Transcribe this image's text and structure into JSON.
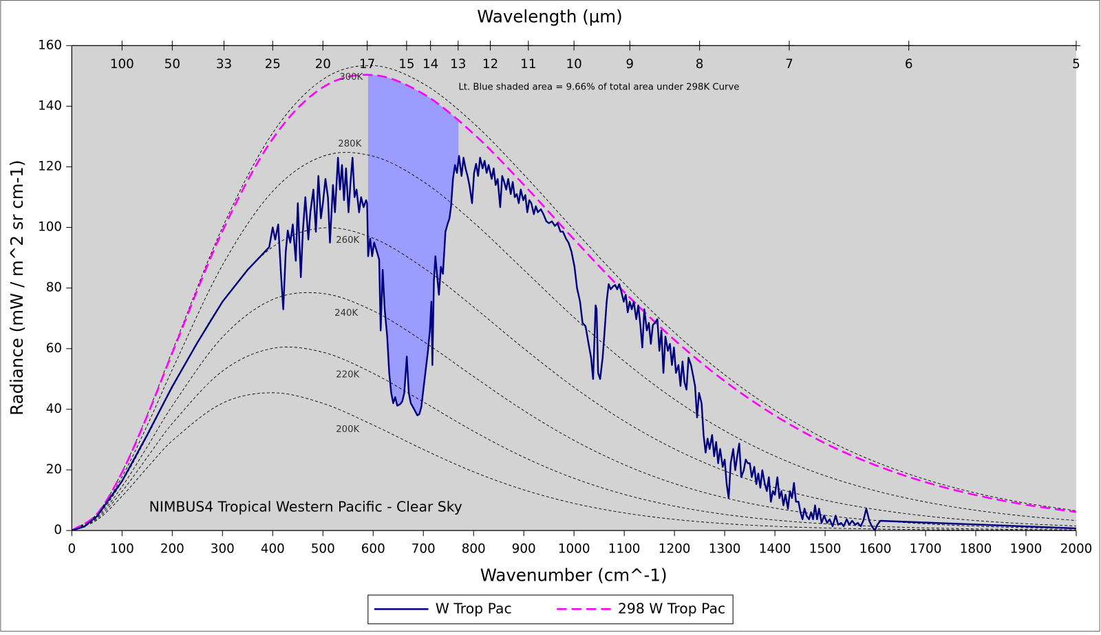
{
  "chart_data": {
    "type": "line",
    "x_label": "Wavenumber (cm^-1)",
    "y_label": "Radiance (mW / m^2 sr cm-1)",
    "top_axis_label": "Wavelength (µm)",
    "top_ticks": [
      100,
      50,
      33,
      25,
      20,
      17,
      15,
      14,
      13,
      12,
      11,
      10,
      9,
      8,
      7,
      6,
      5
    ],
    "xlim": [
      0,
      2000
    ],
    "xticks": [
      0,
      100,
      200,
      300,
      400,
      500,
      600,
      700,
      800,
      900,
      1000,
      1100,
      1200,
      1300,
      1400,
      1500,
      1600,
      1700,
      1800,
      1900,
      2000
    ],
    "ylim": [
      0,
      160
    ],
    "yticks": [
      0,
      20,
      40,
      60,
      80,
      100,
      120,
      140,
      160
    ],
    "background": "#d3d3d3",
    "legend": "bottom",
    "annotations": [
      "NIMBUS4 Tropical Western Pacific - Clear Sky",
      "Lt. Blue shaded area = 9.66% of total area under 298K Curve"
    ],
    "shaded_xlim": [
      590,
      770
    ],
    "shade_color": "#9c9cff",
    "series": [
      {
        "name": "W Trop Pac",
        "color": "#000080",
        "dashed": false,
        "x": [
          0,
          25,
          50,
          100,
          150,
          200,
          250,
          300,
          350,
          393,
          400,
          405,
          411,
          416,
          421,
          426,
          430,
          435,
          440,
          446,
          450,
          456,
          460,
          465,
          471,
          475,
          481,
          486,
          491,
          496,
          500,
          505,
          510,
          514,
          520,
          524,
          530,
          534,
          538,
          542,
          546,
          551,
          555,
          559,
          563,
          567,
          572,
          576,
          581,
          586,
          588,
          590,
          594,
          598,
          602,
          608,
          612,
          615,
          619,
          623,
          628,
          632,
          636,
          640,
          644,
          648,
          654,
          658,
          662,
          667,
          671,
          675,
          679,
          683,
          688,
          692,
          696,
          700,
          704,
          709,
          713,
          716,
          718,
          721,
          724,
          727,
          731,
          735,
          739,
          744,
          748,
          752,
          755,
          759,
          763,
          767,
          771,
          776,
          780,
          784,
          788,
          792,
          797,
          801,
          805,
          809,
          813,
          818,
          822,
          826,
          830,
          836,
          840,
          844,
          848,
          853,
          857,
          861,
          865,
          869,
          874,
          878,
          882,
          886,
          890,
          894,
          899,
          903,
          907,
          911,
          915,
          920,
          924,
          928,
          934,
          939,
          945,
          950,
          956,
          962,
          967,
          973,
          978,
          984,
          989,
          995,
          1001,
          1006,
          1012,
          1017,
          1023,
          1029,
          1034,
          1038,
          1043,
          1045,
          1048,
          1052,
          1057,
          1061,
          1065,
          1069,
          1073,
          1078,
          1082,
          1086,
          1090,
          1094,
          1099,
          1103,
          1107,
          1111,
          1115,
          1119,
          1124,
          1128,
          1132,
          1136,
          1140,
          1145,
          1149,
          1153,
          1157,
          1161,
          1166,
          1170,
          1174,
          1178,
          1182,
          1187,
          1191,
          1195,
          1199,
          1203,
          1208,
          1212,
          1216,
          1220,
          1224,
          1228,
          1233,
          1237,
          1241,
          1245,
          1249,
          1254,
          1258,
          1262,
          1266,
          1270,
          1275,
          1279,
          1283,
          1287,
          1291,
          1296,
          1300,
          1304,
          1308,
          1312,
          1317,
          1321,
          1325,
          1329,
          1333,
          1338,
          1342,
          1346,
          1350,
          1354,
          1359,
          1363,
          1367,
          1371,
          1375,
          1380,
          1384,
          1388,
          1392,
          1396,
          1400,
          1405,
          1409,
          1413,
          1417,
          1421,
          1426,
          1430,
          1434,
          1438,
          1442,
          1447,
          1451,
          1455,
          1459,
          1463,
          1468,
          1472,
          1476,
          1480,
          1484,
          1488,
          1493,
          1498,
          1504,
          1509,
          1515,
          1521,
          1526,
          1532,
          1537,
          1543,
          1548,
          1554,
          1560,
          1565,
          1571,
          1576,
          1582,
          1588,
          1593,
          1599,
          1604,
          1610,
          2000
        ],
        "values": [
          0,
          1.3,
          4.7,
          16.3,
          31.5,
          47.5,
          62,
          75.5,
          86,
          93.5,
          100,
          96,
          101,
          86,
          73,
          92,
          99,
          95,
          101,
          89,
          108,
          83.6,
          98.6,
          110,
          96,
          105,
          112.5,
          98.6,
          117,
          103,
          108,
          116,
          110,
          95,
          114,
          105,
          123,
          112.5,
          120.6,
          109,
          119.5,
          105,
          115,
          123,
          110,
          112.5,
          105,
          110,
          106.7,
          109,
          108,
          90.5,
          96.3,
          90.5,
          95,
          91.7,
          89.4,
          66,
          86,
          73,
          64,
          52,
          45.4,
          42,
          44,
          41.2,
          41.7,
          42.6,
          45.4,
          57.4,
          45.4,
          42,
          40.8,
          39.6,
          38,
          38.4,
          40.8,
          46.5,
          52,
          59,
          66,
          75.5,
          54.6,
          82.4,
          90.5,
          84.7,
          77.8,
          87,
          84.7,
          98.6,
          101,
          103,
          106.7,
          116,
          120.6,
          118,
          123.6,
          117,
          123,
          119.5,
          117,
          113.7,
          108,
          118,
          121,
          117,
          123,
          119.5,
          122,
          118,
          120.6,
          116,
          119.5,
          114,
          116,
          106.7,
          117,
          115,
          112.5,
          116,
          111,
          115,
          110,
          111,
          108,
          112.5,
          109,
          110.7,
          105,
          109,
          108,
          104.4,
          107,
          105,
          106,
          104.4,
          102,
          101.4,
          102,
          100.5,
          101.4,
          98.6,
          98.6,
          96.3,
          95,
          92,
          87,
          80,
          75.5,
          68.5,
          67.4,
          61.6,
          57,
          50,
          74.3,
          73,
          52,
          50,
          57,
          66,
          75.5,
          81.3,
          79.6,
          80.6,
          81,
          79.6,
          81.3,
          79,
          75.5,
          77.8,
          72,
          75.5,
          73,
          75.5,
          69.7,
          74.3,
          68,
          60.4,
          73,
          66,
          68.5,
          61.6,
          67.8,
          68.5,
          69.7,
          59.3,
          66,
          52,
          64,
          59.3,
          61.6,
          54.6,
          60.4,
          52,
          54.6,
          47.7,
          55.8,
          48.9,
          46.5,
          57,
          54.6,
          51.2,
          47.7,
          37.3,
          45.4,
          42,
          31.5,
          25.7,
          30.3,
          26.9,
          31.5,
          24.5,
          29.2,
          22.2,
          26.9,
          21,
          23.4,
          15.3,
          10.7,
          22.2,
          26.9,
          19.9,
          24.5,
          28.7,
          17.6,
          19.9,
          23.4,
          22.2,
          22.2,
          17.6,
          21,
          15.3,
          18.8,
          14.1,
          19.9,
          15.3,
          13,
          17.6,
          9.5,
          13,
          11.8,
          17.6,
          10.7,
          13,
          8.3,
          11.8,
          7.2,
          13,
          10.7,
          15.7,
          9.5,
          9.5,
          6,
          3.7,
          7.2,
          4.9,
          3.7,
          6,
          3.7,
          8.3,
          3.7,
          7.2,
          2.5,
          4.9,
          2.5,
          3.7,
          1.4,
          4.9,
          1.9,
          2.5,
          1.4,
          3.7,
          1.9,
          3.2,
          1.9,
          2.5,
          1.4,
          3.2,
          7.2,
          3.2,
          1.4,
          0,
          1.9,
          3.2,
          0.7
        ]
      },
      {
        "name": "298 W Trop Pac",
        "color": "#ff00ff",
        "dashed": true,
        "x": [
          0,
          50,
          100,
          150,
          200,
          300,
          400,
          500,
          600,
          700,
          800,
          900,
          1000,
          1100,
          1200,
          1300,
          1400,
          1500,
          1600,
          1700,
          1800,
          1900,
          2000
        ],
        "values": [
          0,
          5.45,
          19.19,
          37.81,
          58.58,
          98.75,
          129.22,
          146.25,
          150.29,
          144.05,
          130.89,
          114.07,
          96.06,
          78.67,
          62.88,
          49.28,
          37.95,
          28.77,
          21.56,
          15.95,
          11.68,
          8.48,
          6.1
        ]
      }
    ],
    "blackbody_curves": {
      "color": "#000000",
      "x": [
        0,
        50,
        100,
        150,
        200,
        300,
        400,
        500,
        600,
        700,
        800,
        900,
        1000,
        1100,
        1200,
        1300,
        1400,
        1500,
        1600,
        1700,
        1800,
        1900,
        2000
      ],
      "curves": [
        {
          "label": "300K",
          "values": [
            0,
            5.49,
            19.35,
            38.16,
            59.2,
            100,
            131.18,
            148.86,
            153.39,
            147.43,
            134.38,
            117.46,
            99.23,
            81.5,
            65.36,
            51.39,
            39.7,
            30.21,
            22.69,
            16.84,
            12.38,
            9.01,
            6.5
          ]
        },
        {
          "label": "280K",
          "values": [
            0,
            5.08,
            17.73,
            34.61,
            53.09,
            87.58,
            111.92,
            123.49,
            123.51,
            115.11,
            101.64,
            85.99,
            70.29,
            55.84,
            43.29,
            32.9,
            24.57,
            18.07,
            13.12,
            9.41,
            6.68,
            4.7,
            3.28
          ]
        },
        {
          "label": "260K",
          "values": [
            0,
            4.67,
            16.11,
            31.07,
            47.06,
            75.49,
            93.56,
            99.85,
            96.46,
            86.7,
            73.75,
            60.07,
            47.24,
            36.09,
            26.92,
            19.67,
            14.12,
            9.99,
            6.97,
            4.8,
            3.28,
            2.22,
            1.49
          ]
        },
        {
          "label": "240K",
          "values": [
            0,
            4.26,
            14.5,
            27.57,
            41.13,
            63.8,
            76.22,
            78.21,
            72.49,
            62.42,
            50.81,
            39.57,
            29.75,
            21.72,
            15.47,
            10.8,
            7.4,
            5,
            3.33,
            2.19,
            1.43,
            0.92,
            0.59
          ]
        },
        {
          "label": "220K",
          "values": [
            0,
            3.85,
            12.9,
            24.11,
            35.31,
            52.6,
            60.11,
            58.82,
            51.87,
            42.42,
            32.75,
            24.19,
            17.23,
            11.92,
            8.04,
            5.31,
            3.45,
            2.21,
            1.39,
            0.87,
            0.54,
            0.33,
            0.2
          ]
        },
        {
          "label": "200K",
          "values": [
            0,
            3.44,
            11.31,
            20.7,
            29.63,
            42.01,
            45.45,
            41.95,
            34.8,
            26.74,
            19.37,
            13.41,
            8.95,
            5.8,
            3.67,
            2.27,
            1.38,
            0.83,
            0.49,
            0.29,
            0.17,
            0.09,
            0.05
          ]
        }
      ]
    }
  }
}
